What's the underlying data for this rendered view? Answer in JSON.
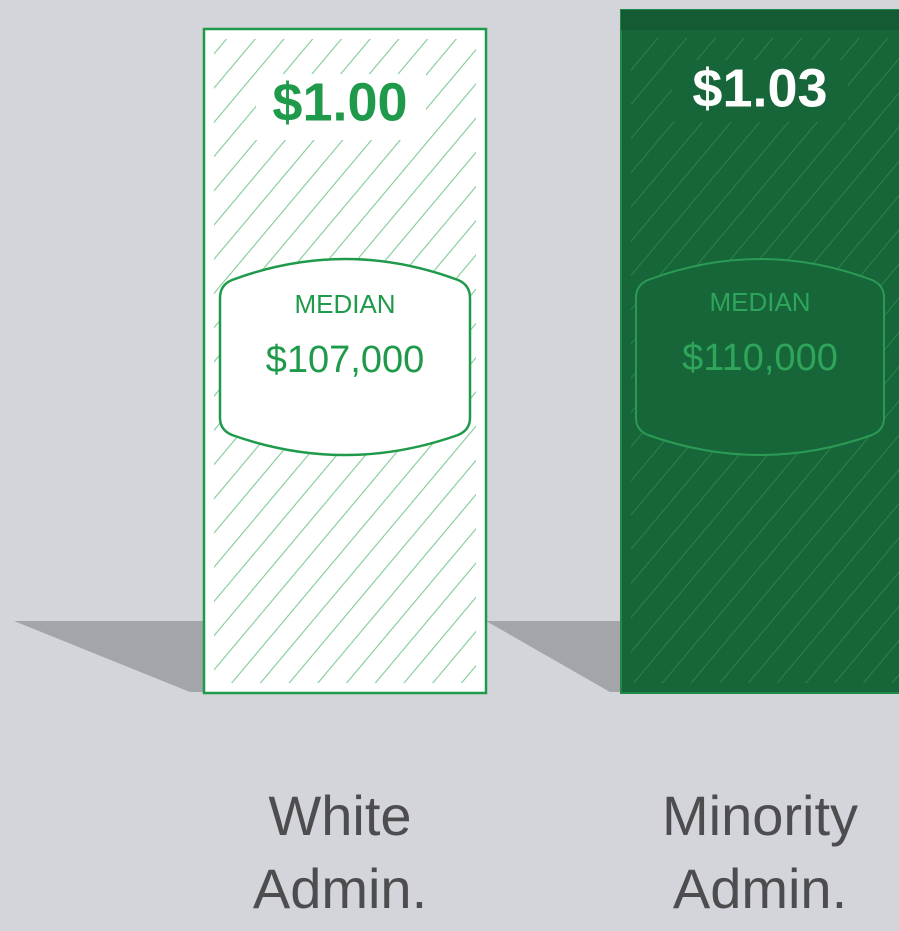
{
  "bills": [
    {
      "amount": "$1.00",
      "median_label": "MEDIAN",
      "median": "$107,000",
      "label_lines": [
        "White",
        "Admin."
      ]
    },
    {
      "amount": "$1.03",
      "median_label": "MEDIAN",
      "median": "$110,000",
      "label_lines": [
        "Minority",
        "Admin."
      ]
    }
  ]
}
